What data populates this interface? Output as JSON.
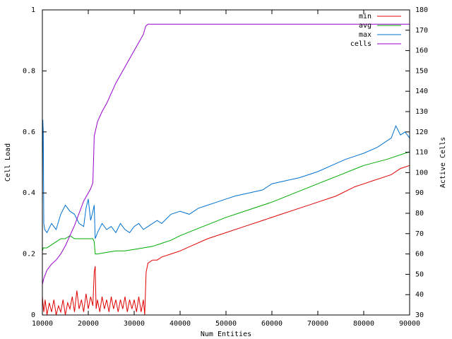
{
  "chart_data": {
    "type": "line",
    "title": "",
    "xlabel": "Num Entities",
    "ylabel": "Cell Load",
    "y2label": "Active Cells",
    "xlim": [
      10000,
      90000
    ],
    "ylim": [
      0,
      1
    ],
    "y2lim": [
      30,
      180
    ],
    "x_ticks": [
      "10000",
      "20000",
      "30000",
      "40000",
      "50000",
      "60000",
      "70000",
      "80000",
      "90000"
    ],
    "y_ticks": [
      "0",
      "0.2",
      "0.4",
      "0.6",
      "0.8",
      "1"
    ],
    "y2_ticks": [
      "30",
      "40",
      "50",
      "60",
      "70",
      "80",
      "90",
      "100",
      "110",
      "120",
      "130",
      "140",
      "150",
      "160",
      "170",
      "180"
    ],
    "grid": false,
    "legend_position": "top-right",
    "series": [
      {
        "name": "min",
        "color": "#e00000",
        "axis": "left",
        "x": [
          10000,
          10300,
          10600,
          11000,
          11500,
          12000,
          12500,
          13000,
          13500,
          14000,
          14500,
          15000,
          15500,
          16000,
          16500,
          17000,
          17500,
          18000,
          18500,
          19000,
          19500,
          20000,
          20500,
          21000,
          21300,
          21500,
          21700,
          22000,
          22500,
          23000,
          23500,
          24000,
          24500,
          25000,
          25500,
          26000,
          26500,
          27000,
          27500,
          28000,
          28500,
          29000,
          29500,
          30000,
          30500,
          31000,
          31500,
          32000,
          32300,
          32600,
          33000,
          34000,
          35000,
          36000,
          38000,
          40000,
          43000,
          46000,
          50000,
          54000,
          58000,
          62000,
          66000,
          70000,
          74000,
          78000,
          82000,
          86000,
          88000,
          90000
        ],
        "values": [
          0.06,
          0.01,
          0.05,
          0.0,
          0.04,
          0.01,
          0.05,
          0.0,
          0.03,
          0.01,
          0.05,
          0.0,
          0.04,
          0.02,
          0.06,
          0.01,
          0.08,
          0.02,
          0.05,
          0.01,
          0.07,
          0.02,
          0.06,
          0.03,
          0.14,
          0.16,
          0.02,
          0.05,
          0.01,
          0.06,
          0.02,
          0.05,
          0.01,
          0.06,
          0.02,
          0.05,
          0.01,
          0.05,
          0.02,
          0.06,
          0.01,
          0.05,
          0.02,
          0.05,
          0.01,
          0.06,
          0.01,
          0.05,
          0.0,
          0.14,
          0.17,
          0.18,
          0.18,
          0.19,
          0.2,
          0.21,
          0.23,
          0.25,
          0.27,
          0.29,
          0.31,
          0.33,
          0.35,
          0.37,
          0.39,
          0.42,
          0.44,
          0.46,
          0.48,
          0.49
        ]
      },
      {
        "name": "avg",
        "color": "#00aa00",
        "axis": "left",
        "x": [
          10000,
          10200,
          10500,
          11000,
          12000,
          13000,
          14000,
          15000,
          16000,
          17000,
          18000,
          19000,
          20000,
          21000,
          21300,
          21500,
          22000,
          24000,
          26000,
          28000,
          30000,
          32000,
          34000,
          36000,
          38000,
          40000,
          45000,
          50000,
          55000,
          60000,
          65000,
          70000,
          75000,
          80000,
          85000,
          90000
        ],
        "values": [
          0.21,
          0.22,
          0.22,
          0.22,
          0.23,
          0.24,
          0.25,
          0.25,
          0.26,
          0.25,
          0.25,
          0.25,
          0.25,
          0.25,
          0.24,
          0.2,
          0.2,
          0.205,
          0.21,
          0.21,
          0.215,
          0.22,
          0.225,
          0.235,
          0.245,
          0.26,
          0.29,
          0.32,
          0.345,
          0.37,
          0.4,
          0.43,
          0.46,
          0.49,
          0.51,
          0.535
        ]
      },
      {
        "name": "max",
        "color": "#0070d0",
        "axis": "left",
        "x": [
          10000,
          10100,
          10200,
          10300,
          10500,
          11000,
          12000,
          13000,
          14000,
          15000,
          16000,
          17000,
          18000,
          19000,
          19500,
          20000,
          20500,
          21000,
          21300,
          21500,
          22000,
          23000,
          24000,
          25000,
          26000,
          27000,
          28000,
          29000,
          30000,
          31000,
          32000,
          33000,
          34000,
          35000,
          36000,
          38000,
          40000,
          42000,
          44000,
          46000,
          48000,
          50000,
          52000,
          55000,
          58000,
          60000,
          63000,
          66000,
          70000,
          73000,
          76000,
          80000,
          83000,
          86000,
          87000,
          88000,
          89000,
          90000
        ],
        "values": [
          0.36,
          0.64,
          0.6,
          0.3,
          0.28,
          0.27,
          0.3,
          0.28,
          0.33,
          0.36,
          0.34,
          0.33,
          0.3,
          0.29,
          0.35,
          0.38,
          0.31,
          0.34,
          0.36,
          0.25,
          0.27,
          0.3,
          0.28,
          0.29,
          0.27,
          0.3,
          0.28,
          0.27,
          0.29,
          0.3,
          0.28,
          0.29,
          0.3,
          0.31,
          0.3,
          0.33,
          0.34,
          0.33,
          0.35,
          0.36,
          0.37,
          0.38,
          0.39,
          0.4,
          0.41,
          0.43,
          0.44,
          0.45,
          0.47,
          0.49,
          0.51,
          0.53,
          0.55,
          0.58,
          0.62,
          0.59,
          0.6,
          0.58
        ]
      },
      {
        "name": "cells",
        "color": "#9900cc",
        "axis": "right",
        "x": [
          10000,
          10300,
          11000,
          12000,
          13000,
          14000,
          15000,
          16000,
          17000,
          18000,
          19000,
          20000,
          20500,
          21000,
          21200,
          21300,
          21500,
          22000,
          23000,
          24000,
          25000,
          26000,
          27000,
          28000,
          29000,
          30000,
          31000,
          32000,
          32500,
          33000,
          90000
        ],
        "values": [
          45,
          48,
          52,
          55,
          57,
          60,
          64,
          69,
          74,
          80,
          86,
          90,
          92,
          95,
          110,
          118,
          120,
          125,
          130,
          134,
          139,
          144,
          148,
          152,
          156,
          160,
          164,
          168,
          172,
          173,
          173
        ]
      }
    ]
  }
}
